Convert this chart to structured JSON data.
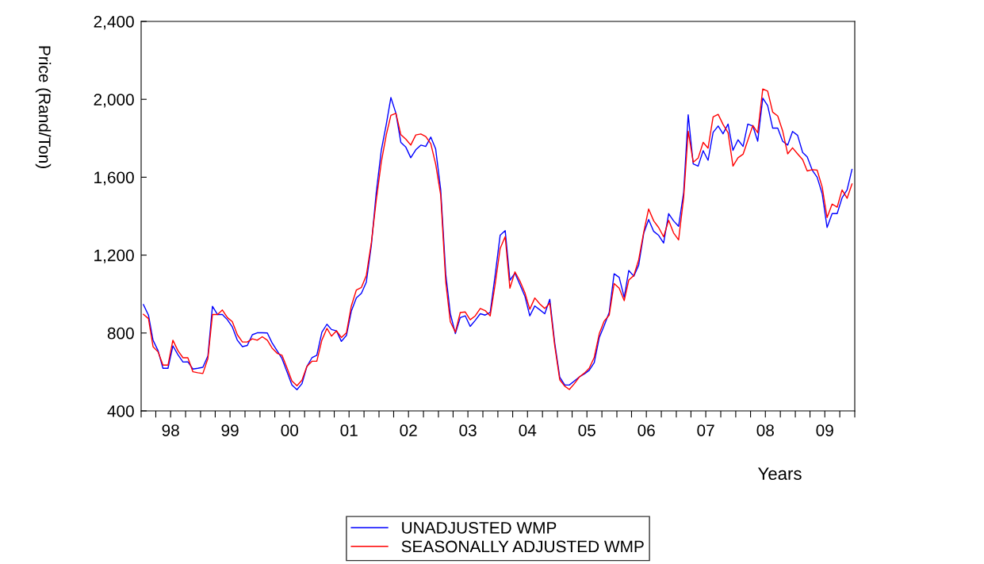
{
  "chart_data": {
    "type": "line",
    "xlabel": "Years",
    "ylabel": "Price (Rand/Ton)",
    "x": [
      "1998-01-15",
      "1998-02-15",
      "1998-03-15",
      "1998-04-15",
      "1998-05-15",
      "1998-06-15",
      "1998-07-15",
      "1998-08-15",
      "1998-09-15",
      "1998-10-15",
      "1998-11-15",
      "1998-12-15",
      "1999-01-15",
      "1999-02-15",
      "1999-03-15",
      "1999-04-15",
      "1999-05-15",
      "1999-06-15",
      "1999-07-15",
      "1999-08-15",
      "1999-09-15",
      "1999-10-15",
      "1999-11-15",
      "1999-12-15",
      "2000-01-15",
      "2000-02-15",
      "2000-03-15",
      "2000-04-15",
      "2000-05-15",
      "2000-06-15",
      "2000-07-15",
      "2000-08-15",
      "2000-09-15",
      "2000-10-15",
      "2000-11-15",
      "2000-12-15",
      "2001-01-15",
      "2001-02-15",
      "2001-03-15",
      "2001-04-15",
      "2001-05-15",
      "2001-06-15",
      "2001-07-15",
      "2001-08-15",
      "2001-09-15",
      "2001-10-15",
      "2001-11-15",
      "2001-12-15",
      "2002-01-15",
      "2002-02-15",
      "2002-03-15",
      "2002-04-15",
      "2002-05-15",
      "2002-06-15",
      "2002-07-15",
      "2002-08-15",
      "2002-09-15",
      "2002-10-15",
      "2002-11-15",
      "2002-12-15",
      "2003-01-15",
      "2003-02-15",
      "2003-03-15",
      "2003-04-15",
      "2003-05-15",
      "2003-06-15",
      "2003-07-15",
      "2003-08-15",
      "2003-09-15",
      "2003-10-15",
      "2003-11-15",
      "2003-12-15",
      "2004-01-15",
      "2004-02-15",
      "2004-03-15",
      "2004-04-15",
      "2004-05-15",
      "2004-06-15",
      "2004-07-15",
      "2004-08-15",
      "2004-09-15",
      "2004-10-15",
      "2004-11-15",
      "2004-12-15",
      "2005-01-15",
      "2005-02-15",
      "2005-03-15",
      "2005-04-15",
      "2005-05-15",
      "2005-06-15",
      "2005-07-15",
      "2005-08-15",
      "2005-09-15",
      "2005-10-15",
      "2005-11-15",
      "2005-12-15",
      "2006-01-15",
      "2006-02-15",
      "2006-03-15",
      "2006-04-15",
      "2006-05-15",
      "2006-06-15",
      "2006-07-15",
      "2006-08-15",
      "2006-09-15",
      "2006-10-15",
      "2006-11-15",
      "2006-12-15",
      "2007-01-15",
      "2007-02-15",
      "2007-03-15",
      "2007-04-15",
      "2007-05-15",
      "2007-06-15",
      "2007-07-15",
      "2007-08-15",
      "2007-09-15",
      "2007-10-15",
      "2007-11-15",
      "2007-12-15",
      "2008-01-15",
      "2008-02-15",
      "2008-03-15",
      "2008-04-15",
      "2008-05-15",
      "2008-06-15",
      "2008-07-15",
      "2008-08-15",
      "2008-09-15",
      "2008-10-15",
      "2008-11-15",
      "2008-12-15",
      "2009-01-15",
      "2009-02-15",
      "2009-03-15",
      "2009-04-15",
      "2009-05-15",
      "2009-06-15",
      "2009-07-15",
      "2009-08-15",
      "2009-09-15",
      "2009-10-15",
      "2009-11-15",
      "2009-12-15"
    ],
    "series": [
      {
        "name": "UNADJUSTED WMP",
        "color": "#0000ff",
        "values": [
          946,
          892,
          763,
          709,
          619,
          619,
          734,
          689,
          651,
          652,
          615,
          619,
          624,
          682,
          937,
          895,
          895,
          868,
          831,
          763,
          730,
          736,
          791,
          801,
          801,
          800,
          750,
          709,
          669,
          601,
          533,
          509,
          540,
          628,
          673,
          686,
          804,
          845,
          818,
          811,
          757,
          788,
          912,
          980,
          1004,
          1061,
          1251,
          1521,
          1738,
          1873,
          2009,
          1928,
          1779,
          1754,
          1700,
          1741,
          1765,
          1758,
          1806,
          1745,
          1535,
          1102,
          899,
          797,
          879,
          888,
          834,
          865,
          899,
          892,
          906,
          1095,
          1302,
          1326,
          1071,
          1107,
          1050,
          989,
          888,
          939,
          919,
          899,
          973,
          750,
          574,
          533,
          533,
          554,
          574,
          590,
          608,
          648,
          777,
          838,
          906,
          1104,
          1086,
          983,
          1121,
          1092,
          1149,
          1312,
          1383,
          1322,
          1301,
          1262,
          1413,
          1376,
          1348,
          1521,
          1921,
          1668,
          1657,
          1736,
          1687,
          1830,
          1863,
          1823,
          1873,
          1738,
          1792,
          1758,
          1873,
          1863,
          1785,
          2006,
          1968,
          1852,
          1852,
          1785,
          1765,
          1835,
          1815,
          1727,
          1704,
          1636,
          1600,
          1515,
          1342,
          1413,
          1413,
          1494,
          1535,
          1640
        ]
      },
      {
        "name": "SEASONALLY ADJUSTED WMP",
        "color": "#ff0000",
        "values": [
          896,
          874,
          730,
          703,
          635,
          635,
          763,
          709,
          673,
          673,
          601,
          596,
          592,
          669,
          895,
          895,
          918,
          879,
          858,
          791,
          754,
          754,
          770,
          763,
          781,
          763,
          723,
          696,
          686,
          621,
          554,
          529,
          558,
          628,
          655,
          655,
          763,
          824,
          784,
          811,
          777,
          801,
          939,
          1021,
          1034,
          1095,
          1264,
          1481,
          1677,
          1819,
          1918,
          1928,
          1819,
          1795,
          1765,
          1817,
          1822,
          1809,
          1772,
          1667,
          1508,
          1061,
          858,
          804,
          905,
          908,
          868,
          888,
          926,
          915,
          888,
          1048,
          1234,
          1295,
          1030,
          1114,
          1068,
          1007,
          922,
          980,
          949,
          926,
          953,
          736,
          560,
          527,
          510,
          540,
          574,
          594,
          619,
          675,
          797,
          861,
          892,
          1054,
          1030,
          966,
          1072,
          1095,
          1176,
          1318,
          1437,
          1376,
          1341,
          1294,
          1379,
          1314,
          1278,
          1494,
          1836,
          1677,
          1698,
          1779,
          1749,
          1910,
          1923,
          1871,
          1828,
          1657,
          1700,
          1718,
          1789,
          1866,
          1828,
          2053,
          2042,
          1934,
          1914,
          1838,
          1720,
          1751,
          1720,
          1690,
          1632,
          1639,
          1636,
          1549,
          1393,
          1462,
          1446,
          1535,
          1492,
          1565
        ]
      }
    ],
    "xlim": [
      "1998-01-01",
      "2010-01-01"
    ],
    "xticks": [
      {
        "value": "1998-01-01",
        "label": null
      },
      {
        "value": "1998-04-01",
        "label": null
      },
      {
        "value": "1998-07-01",
        "label": "98"
      },
      {
        "value": "1998-10-01",
        "label": null
      },
      {
        "value": "1999-01-01",
        "label": null
      },
      {
        "value": "1999-04-01",
        "label": null
      },
      {
        "value": "1999-07-01",
        "label": "99"
      },
      {
        "value": "1999-10-01",
        "label": null
      },
      {
        "value": "2000-01-01",
        "label": null
      },
      {
        "value": "2000-04-01",
        "label": null
      },
      {
        "value": "2000-07-01",
        "label": "00"
      },
      {
        "value": "2000-10-01",
        "label": null
      },
      {
        "value": "2001-01-01",
        "label": null
      },
      {
        "value": "2001-04-01",
        "label": null
      },
      {
        "value": "2001-07-01",
        "label": "01"
      },
      {
        "value": "2001-10-01",
        "label": null
      },
      {
        "value": "2002-01-01",
        "label": null
      },
      {
        "value": "2002-04-01",
        "label": null
      },
      {
        "value": "2002-07-01",
        "label": "02"
      },
      {
        "value": "2002-10-01",
        "label": null
      },
      {
        "value": "2003-01-01",
        "label": null
      },
      {
        "value": "2003-04-01",
        "label": null
      },
      {
        "value": "2003-07-01",
        "label": "03"
      },
      {
        "value": "2003-10-01",
        "label": null
      },
      {
        "value": "2004-01-01",
        "label": null
      },
      {
        "value": "2004-04-01",
        "label": null
      },
      {
        "value": "2004-07-01",
        "label": "04"
      },
      {
        "value": "2004-10-01",
        "label": null
      },
      {
        "value": "2005-01-01",
        "label": null
      },
      {
        "value": "2005-04-01",
        "label": null
      },
      {
        "value": "2005-07-01",
        "label": "05"
      },
      {
        "value": "2005-10-01",
        "label": null
      },
      {
        "value": "2006-01-01",
        "label": null
      },
      {
        "value": "2006-04-01",
        "label": null
      },
      {
        "value": "2006-07-01",
        "label": "06"
      },
      {
        "value": "2006-10-01",
        "label": null
      },
      {
        "value": "2007-01-01",
        "label": null
      },
      {
        "value": "2007-04-01",
        "label": null
      },
      {
        "value": "2007-07-01",
        "label": "07"
      },
      {
        "value": "2007-10-01",
        "label": null
      },
      {
        "value": "2008-01-01",
        "label": null
      },
      {
        "value": "2008-04-01",
        "label": null
      },
      {
        "value": "2008-07-01",
        "label": "08"
      },
      {
        "value": "2008-10-01",
        "label": null
      },
      {
        "value": "2009-01-01",
        "label": null
      },
      {
        "value": "2009-04-01",
        "label": null
      },
      {
        "value": "2009-07-01",
        "label": "09"
      },
      {
        "value": "2009-10-01",
        "label": null
      },
      {
        "value": "2010-01-01",
        "label": null
      }
    ],
    "ylim": [
      400,
      2400
    ],
    "yticks": [
      {
        "value": 400,
        "label": "400"
      },
      {
        "value": 800,
        "label": "800"
      },
      {
        "value": 1200,
        "label": "1,200"
      },
      {
        "value": 1600,
        "label": "1,600"
      },
      {
        "value": 2000,
        "label": "2,000"
      },
      {
        "value": 2400,
        "label": "2,400"
      }
    ],
    "grid": false,
    "legend": "bottom",
    "marker": "none",
    "line_style": "solid"
  }
}
